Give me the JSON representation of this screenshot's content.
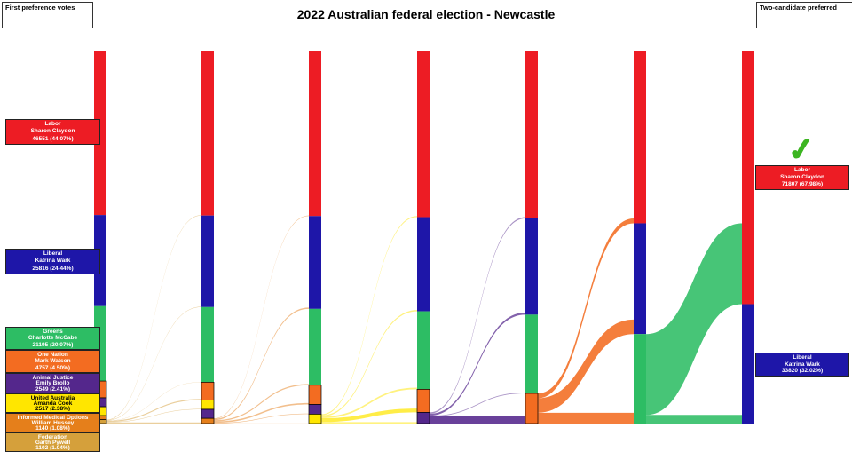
{
  "title": "2022 Australian federal election - Newcastle",
  "left_panel_label": "First preference votes",
  "right_panel_label": "Two-candidate preferred",
  "winner_check_glyph": "✓",
  "colors": {
    "labor": "#ed1c24",
    "liberal": "#1e16a8",
    "greens": "#2dbd64",
    "onenation": "#f36c21",
    "animaljustice": "#54278c",
    "uap": "#ffe600",
    "imo": "#e57f1b",
    "federation": "#d5a03b",
    "checkmark": "#3cb521"
  },
  "first_preference": [
    {
      "key": "labor",
      "party": "Labor",
      "candidate": "Sharon Claydon",
      "votes_display": "46551 (44.07%)",
      "text_color": "#ffffff"
    },
    {
      "key": "liberal",
      "party": "Liberal",
      "candidate": "Katrina Wark",
      "votes_display": "25816 (24.44%)",
      "text_color": "#ffffff"
    },
    {
      "key": "greens",
      "party": "Greens",
      "candidate": "Charlotte McCabe",
      "votes_display": "21195 (20.07%)",
      "text_color": "#ffffff"
    },
    {
      "key": "onenation",
      "party": "One Nation",
      "candidate": "Mark Watson",
      "votes_display": "4757 (4.50%)",
      "text_color": "#ffffff"
    },
    {
      "key": "animaljustice",
      "party": "Animal Justice",
      "candidate": "Emily Brollo",
      "votes_display": "2549 (2.41%)",
      "text_color": "#ffffff"
    },
    {
      "key": "uap",
      "party": "United Australia",
      "candidate": "Amanda Cook",
      "votes_display": "2517 (2.38%)",
      "text_color": "#000000"
    },
    {
      "key": "imo",
      "party": "Informed Medical Options",
      "candidate": "William Hussey",
      "votes_display": "1140 (1.08%)",
      "text_color": "#ffffff"
    },
    {
      "key": "federation",
      "party": "Federation",
      "candidate": "Garth Pywell",
      "votes_display": "1102 (1.04%)",
      "text_color": "#ffffff"
    }
  ],
  "two_candidate_preferred": [
    {
      "key": "labor",
      "party": "Labor",
      "candidate": "Sharon Claydon",
      "votes_display": "71807 (67.98%)",
      "text_color": "#ffffff",
      "winner": true
    },
    {
      "key": "liberal",
      "party": "Liberal",
      "candidate": "Katrina Wark",
      "votes_display": "33820 (32.02%)",
      "text_color": "#ffffff",
      "winner": false
    }
  ],
  "chart_data": {
    "type": "sankey",
    "description": "Preference distribution over 7 counting rounds; each column is 100% of formal votes, segments ordered top to bottom, bottom segment eliminated into next column.",
    "columns": [
      {
        "round": 1,
        "segments": [
          [
            "labor",
            0.4407
          ],
          [
            "liberal",
            0.2444
          ],
          [
            "greens",
            0.2007
          ],
          [
            "onenation",
            0.045
          ],
          [
            "animaljustice",
            0.0241
          ],
          [
            "uap",
            0.0238
          ],
          [
            "imo",
            0.0108
          ],
          [
            "federation",
            0.0104
          ]
        ]
      },
      {
        "round": 2,
        "segments": [
          [
            "labor",
            0.4421
          ],
          [
            "liberal",
            0.2456
          ],
          [
            "greens",
            0.2013
          ],
          [
            "onenation",
            0.0478
          ],
          [
            "uap",
            0.025
          ],
          [
            "animaljustice",
            0.0243
          ],
          [
            "imo",
            0.0139
          ]
        ]
      },
      {
        "round": 3,
        "segments": [
          [
            "labor",
            0.4435
          ],
          [
            "liberal",
            0.249
          ],
          [
            "greens",
            0.2045
          ],
          [
            "onenation",
            0.0518
          ],
          [
            "animaljustice",
            0.026
          ],
          [
            "uap",
            0.0252
          ]
        ]
      },
      {
        "round": 4,
        "segments": [
          [
            "labor",
            0.4465
          ],
          [
            "liberal",
            0.2525
          ],
          [
            "greens",
            0.209
          ],
          [
            "onenation",
            0.062
          ],
          [
            "animaljustice",
            0.03
          ]
        ]
      },
      {
        "round": 5,
        "segments": [
          [
            "labor",
            0.45
          ],
          [
            "liberal",
            0.258
          ],
          [
            "greens",
            0.211
          ],
          [
            "onenation",
            0.081
          ]
        ]
      },
      {
        "round": 6,
        "segments": [
          [
            "labor",
            0.463
          ],
          [
            "liberal",
            0.297
          ],
          [
            "greens",
            0.24
          ]
        ]
      },
      {
        "round": 7,
        "segments": [
          [
            "labor",
            0.6798
          ],
          [
            "liberal",
            0.3202
          ]
        ]
      }
    ]
  }
}
